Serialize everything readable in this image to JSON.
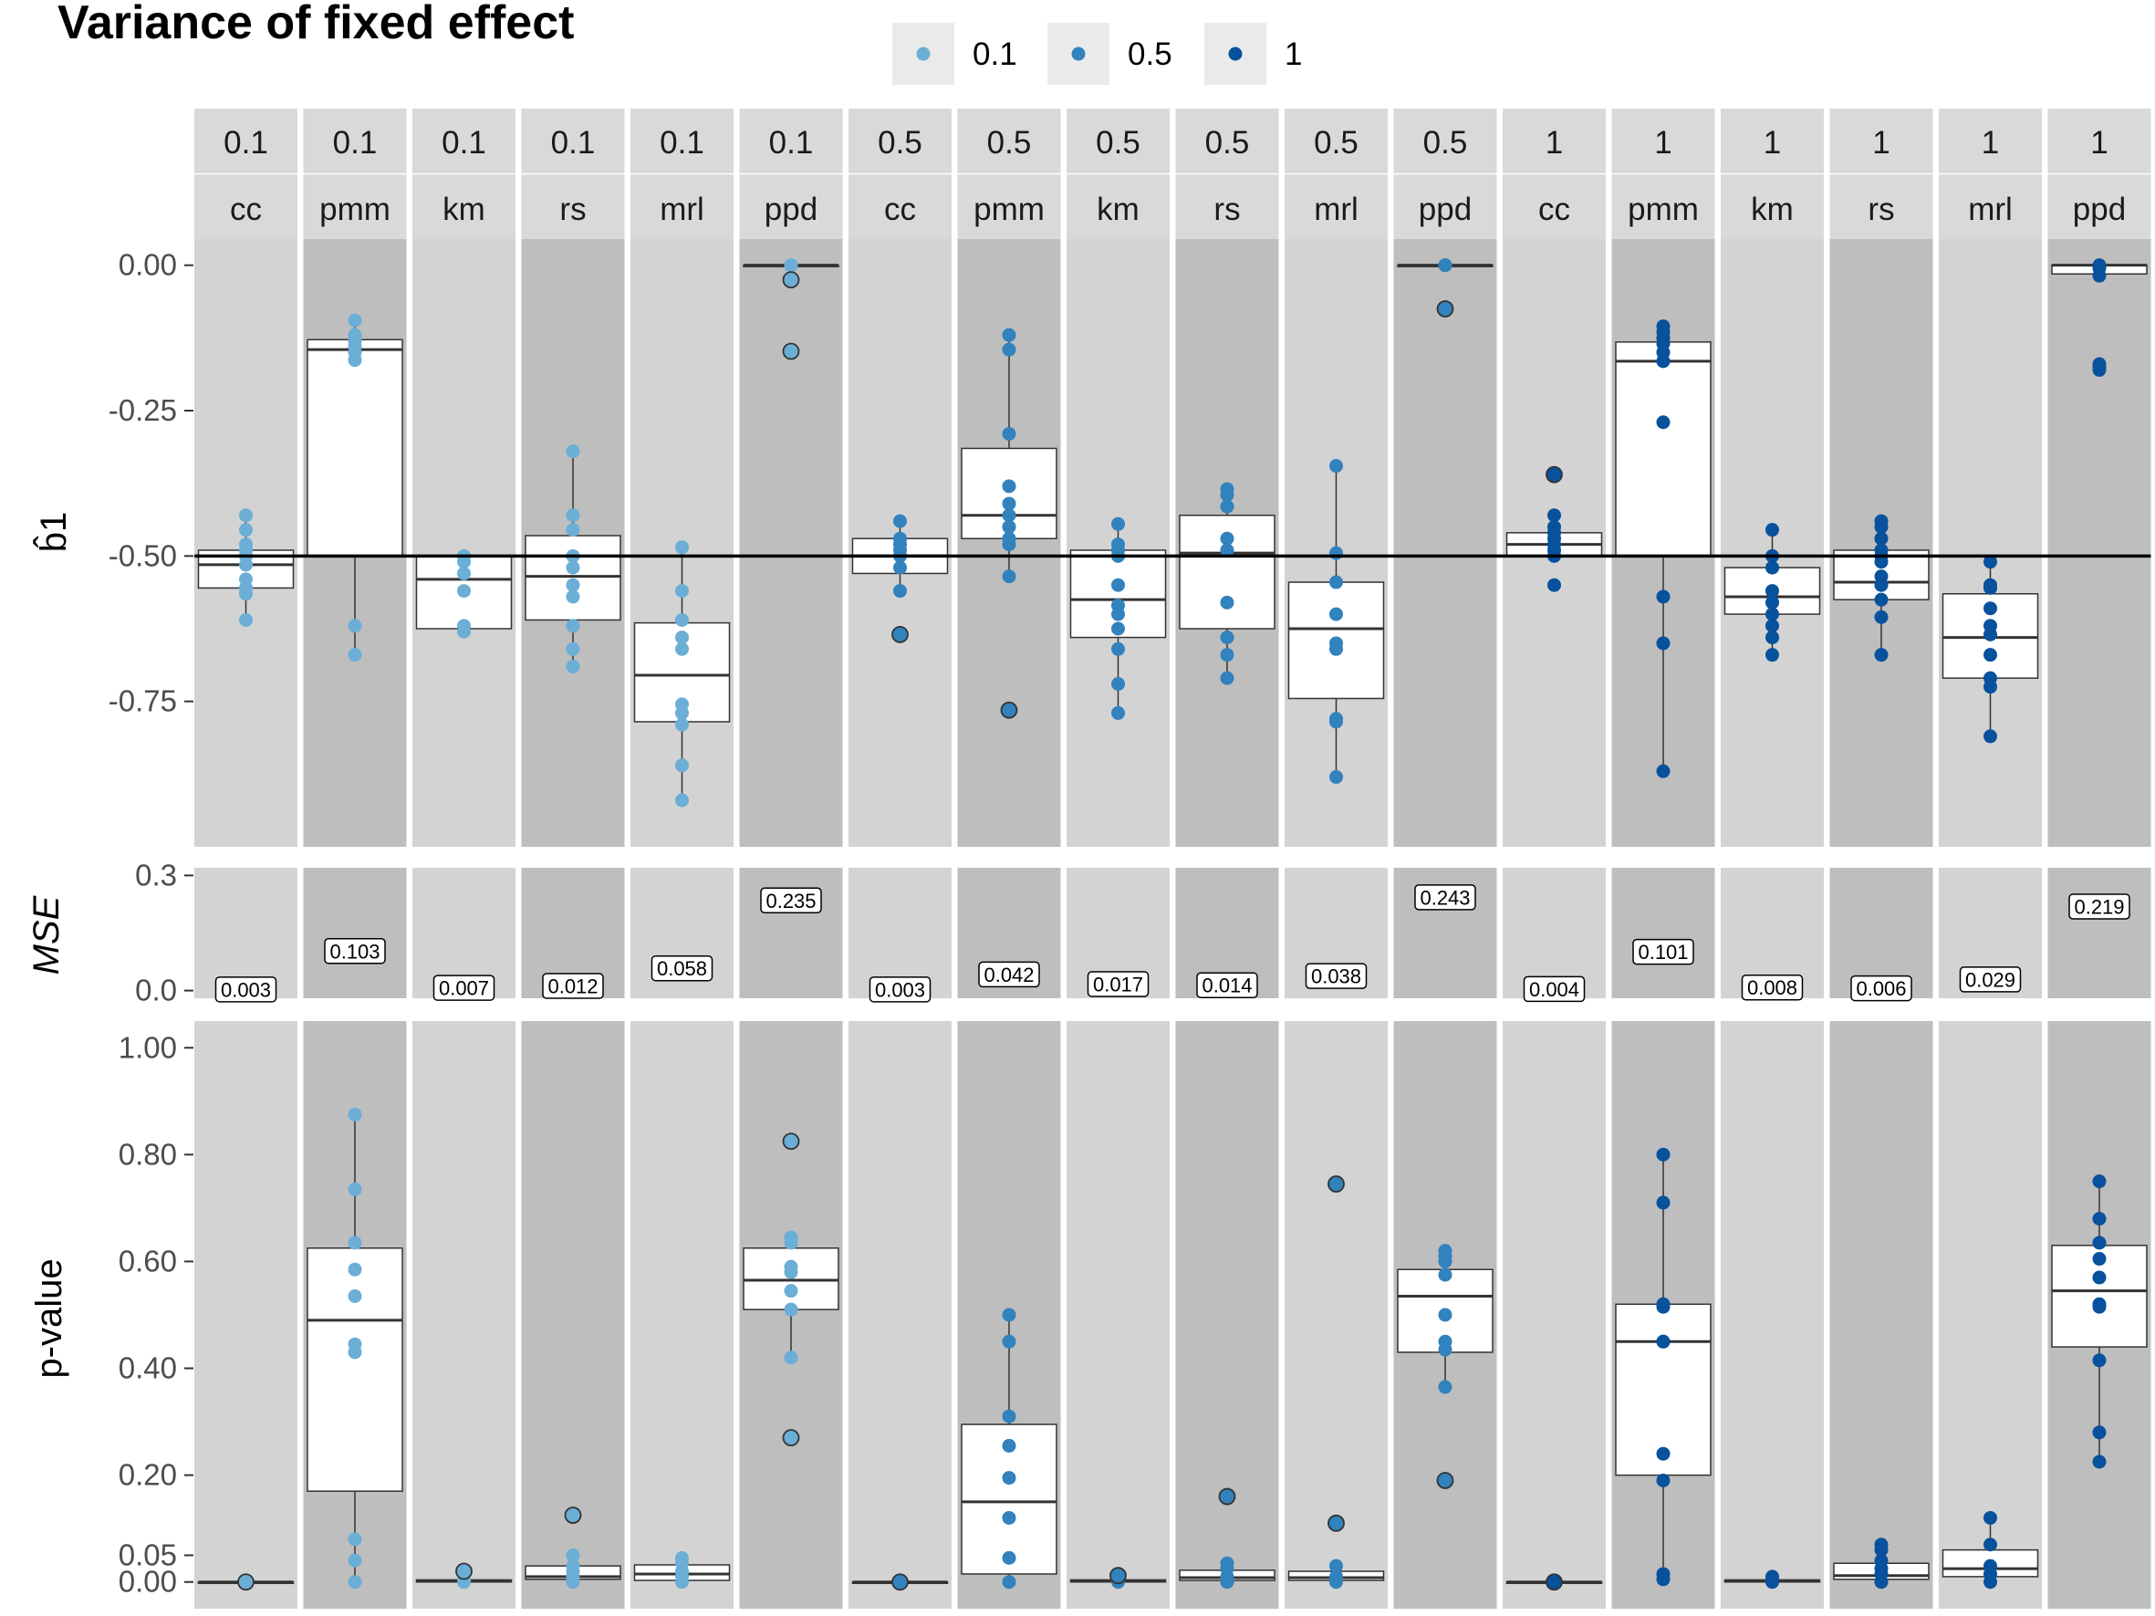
{
  "chart_data": {
    "type": "boxplot",
    "title": "Variance of fixed effect",
    "legend": {
      "placement": "top",
      "entries": [
        "0.1",
        "0.5",
        "1"
      ],
      "colors": [
        "#6baed6",
        "#3182bd",
        "#08519c"
      ]
    },
    "facet_rows": [
      "0.1",
      "0.1",
      "0.1",
      "0.1",
      "0.1",
      "0.1",
      "0.5",
      "0.5",
      "0.5",
      "0.5",
      "0.5",
      "0.5",
      "1",
      "1",
      "1",
      "1",
      "1",
      "1"
    ],
    "facet_methods": [
      "cc",
      "pmm",
      "km",
      "rs",
      "mrl",
      "ppd",
      "cc",
      "pmm",
      "km",
      "rs",
      "mrl",
      "ppd",
      "cc",
      "pmm",
      "km",
      "rs",
      "mrl",
      "ppd"
    ],
    "b1": {
      "ylabel": "b̂1",
      "ylim": [
        -1.0,
        0.045
      ],
      "ticks": [
        "0.00",
        "-0.25",
        "-0.50",
        "-0.75"
      ],
      "tick_values": [
        0.0,
        -0.25,
        -0.5,
        -0.75
      ],
      "reference_line": -0.5,
      "panels": [
        {
          "box": [
            -0.61,
            -0.555,
            -0.515,
            -0.49,
            -0.43
          ],
          "points": [
            -0.43,
            -0.455,
            -0.48,
            -0.49,
            -0.5,
            -0.515,
            -0.54,
            -0.555,
            -0.565,
            -0.61
          ],
          "outliers": []
        },
        {
          "box": [
            -0.67,
            -0.5,
            -0.145,
            -0.128,
            -0.095
          ],
          "points": [
            -0.095,
            -0.12,
            -0.13,
            -0.14,
            -0.15,
            -0.163,
            -0.62,
            -0.67
          ],
          "outliers": []
        },
        {
          "box": [
            -0.63,
            -0.625,
            -0.54,
            -0.5,
            -0.5
          ],
          "points": [
            -0.5,
            -0.51,
            -0.53,
            -0.56,
            -0.62,
            -0.63
          ],
          "outliers": []
        },
        {
          "box": [
            -0.69,
            -0.61,
            -0.535,
            -0.465,
            -0.32
          ],
          "points": [
            -0.32,
            -0.43,
            -0.455,
            -0.5,
            -0.52,
            -0.55,
            -0.57,
            -0.62,
            -0.66,
            -0.69
          ],
          "outliers": []
        },
        {
          "box": [
            -0.92,
            -0.785,
            -0.705,
            -0.615,
            -0.485
          ],
          "points": [
            -0.485,
            -0.56,
            -0.61,
            -0.64,
            -0.66,
            -0.755,
            -0.77,
            -0.79,
            -0.86,
            -0.92
          ],
          "outliers": []
        },
        {
          "box": [
            0.0,
            0.0,
            0.0,
            0.0,
            0.0
          ],
          "points": [
            0.0,
            0.0,
            0.0
          ],
          "outliers": [
            -0.025,
            -0.148
          ]
        },
        {
          "box": [
            -0.56,
            -0.53,
            -0.5,
            -0.47,
            -0.44
          ],
          "points": [
            -0.44,
            -0.47,
            -0.48,
            -0.49,
            -0.5,
            -0.52,
            -0.56
          ],
          "outliers": [
            -0.635
          ]
        },
        {
          "box": [
            -0.535,
            -0.47,
            -0.43,
            -0.315,
            -0.12
          ],
          "points": [
            -0.12,
            -0.145,
            -0.29,
            -0.38,
            -0.41,
            -0.43,
            -0.45,
            -0.47,
            -0.48,
            -0.535
          ],
          "outliers": [
            -0.765
          ]
        },
        {
          "box": [
            -0.77,
            -0.64,
            -0.575,
            -0.49,
            -0.445
          ],
          "points": [
            -0.445,
            -0.48,
            -0.49,
            -0.5,
            -0.55,
            -0.585,
            -0.6,
            -0.625,
            -0.66,
            -0.72,
            -0.77
          ],
          "outliers": []
        },
        {
          "box": [
            -0.71,
            -0.625,
            -0.495,
            -0.43,
            -0.385
          ],
          "points": [
            -0.385,
            -0.395,
            -0.415,
            -0.47,
            -0.49,
            -0.58,
            -0.64,
            -0.67,
            -0.71
          ],
          "outliers": []
        },
        {
          "box": [
            -0.88,
            -0.745,
            -0.625,
            -0.545,
            -0.345
          ],
          "points": [
            -0.345,
            -0.495,
            -0.545,
            -0.6,
            -0.65,
            -0.66,
            -0.78,
            -0.785,
            -0.88
          ],
          "outliers": []
        },
        {
          "box": [
            0.0,
            0.0,
            0.0,
            0.0,
            0.0
          ],
          "points": [
            0.0,
            0.0
          ],
          "outliers": [
            -0.075
          ]
        },
        {
          "box": [
            -0.5,
            -0.5,
            -0.48,
            -0.46,
            -0.43
          ],
          "points": [
            -0.43,
            -0.45,
            -0.46,
            -0.47,
            -0.48,
            -0.49,
            -0.5,
            -0.55
          ],
          "outliers": [
            -0.36
          ]
        },
        {
          "box": [
            -0.88,
            -0.5,
            -0.165,
            -0.132,
            -0.105
          ],
          "points": [
            -0.105,
            -0.115,
            -0.125,
            -0.135,
            -0.15,
            -0.165,
            -0.27,
            -0.57,
            -0.65,
            -0.87
          ],
          "outliers": []
        },
        {
          "box": [
            -0.67,
            -0.6,
            -0.57,
            -0.52,
            -0.455
          ],
          "points": [
            -0.455,
            -0.5,
            -0.52,
            -0.56,
            -0.58,
            -0.6,
            -0.62,
            -0.64,
            -0.67
          ],
          "outliers": []
        },
        {
          "box": [
            -0.67,
            -0.575,
            -0.545,
            -0.49,
            -0.44
          ],
          "points": [
            -0.44,
            -0.45,
            -0.47,
            -0.49,
            -0.5,
            -0.51,
            -0.535,
            -0.55,
            -0.575,
            -0.605,
            -0.67
          ],
          "outliers": []
        },
        {
          "box": [
            -0.81,
            -0.71,
            -0.64,
            -0.565,
            -0.51
          ],
          "points": [
            -0.51,
            -0.55,
            -0.555,
            -0.59,
            -0.62,
            -0.635,
            -0.67,
            -0.71,
            -0.725,
            -0.81
          ],
          "outliers": []
        },
        {
          "box": [
            -0.018,
            -0.015,
            0.0,
            0.0,
            0.0
          ],
          "points": [
            0.0,
            -0.005,
            -0.018,
            -0.17,
            -0.175,
            -0.18
          ],
          "outliers": []
        }
      ]
    },
    "mse": {
      "ylabel": "MSE",
      "ylim": [
        -0.02,
        0.32
      ],
      "ticks": [
        "0.3",
        "0.0"
      ],
      "tick_values": [
        0.3,
        0.0
      ],
      "values": [
        0.003,
        0.103,
        0.007,
        0.012,
        0.058,
        0.235,
        0.003,
        0.042,
        0.017,
        0.014,
        0.038,
        0.243,
        0.004,
        0.101,
        0.008,
        0.006,
        0.029,
        0.219
      ],
      "labels": [
        "0.003",
        "0.103",
        "0.007",
        "0.012",
        "0.058",
        "0.235",
        "0.003",
        "0.042",
        "0.017",
        "0.014",
        "0.038",
        "0.243",
        "0.004",
        "0.101",
        "0.008",
        "0.006",
        "0.029",
        "0.219"
      ]
    },
    "pvalue": {
      "ylabel": "p-value",
      "ylim": [
        -0.05,
        1.05
      ],
      "ticks": [
        "1.00",
        "0.80",
        "0.60",
        "0.40",
        "0.20",
        "0.05",
        "0.00"
      ],
      "tick_values": [
        1.0,
        0.8,
        0.6,
        0.4,
        0.2,
        0.05,
        0.0
      ],
      "panels": [
        {
          "box": [
            0.0,
            0.0,
            0.0,
            0.0,
            0.0
          ],
          "points": [
            0.0
          ],
          "outliers": [
            0.0
          ]
        },
        {
          "box": [
            0.0,
            0.17,
            0.49,
            0.625,
            0.875
          ],
          "points": [
            0.875,
            0.735,
            0.635,
            0.585,
            0.535,
            0.445,
            0.43,
            0.08,
            0.04,
            0.0
          ],
          "outliers": []
        },
        {
          "box": [
            0.0,
            0.0,
            0.002,
            0.004,
            0.006
          ],
          "points": [
            0.0,
            0.002,
            0.004
          ],
          "outliers": [
            0.02
          ]
        },
        {
          "box": [
            0.0,
            0.005,
            0.01,
            0.03,
            0.05
          ],
          "points": [
            0.0,
            0.01,
            0.02,
            0.03,
            0.05
          ],
          "outliers": [
            0.125
          ]
        },
        {
          "box": [
            0.0,
            0.003,
            0.015,
            0.032,
            0.045
          ],
          "points": [
            0.0,
            0.01,
            0.02,
            0.035,
            0.045
          ],
          "outliers": []
        },
        {
          "box": [
            0.42,
            0.51,
            0.565,
            0.625,
            0.645
          ],
          "points": [
            0.645,
            0.635,
            0.59,
            0.58,
            0.545,
            0.51,
            0.42
          ],
          "outliers": [
            0.825,
            0.27
          ]
        },
        {
          "box": [
            0.0,
            0.0,
            0.0,
            0.0,
            0.0
          ],
          "points": [
            0.0
          ],
          "outliers": [
            0.0
          ]
        },
        {
          "box": [
            0.0,
            0.015,
            0.15,
            0.295,
            0.5
          ],
          "points": [
            0.5,
            0.45,
            0.31,
            0.255,
            0.195,
            0.12,
            0.045,
            0.0
          ],
          "outliers": []
        },
        {
          "box": [
            0.0,
            0.0,
            0.002,
            0.004,
            0.006
          ],
          "points": [
            0.0,
            0.004
          ],
          "outliers": [
            0.012
          ]
        },
        {
          "box": [
            0.0,
            0.003,
            0.008,
            0.022,
            0.035
          ],
          "points": [
            0.0,
            0.01,
            0.025,
            0.035
          ],
          "outliers": [
            0.16
          ]
        },
        {
          "box": [
            0.0,
            0.003,
            0.008,
            0.02,
            0.03
          ],
          "points": [
            0.0,
            0.01,
            0.03
          ],
          "outliers": [
            0.745,
            0.11
          ]
        },
        {
          "box": [
            0.365,
            0.43,
            0.535,
            0.585,
            0.62
          ],
          "points": [
            0.62,
            0.61,
            0.6,
            0.575,
            0.5,
            0.45,
            0.435,
            0.365
          ],
          "outliers": [
            0.19
          ]
        },
        {
          "box": [
            0.0,
            0.0,
            0.0,
            0.0,
            0.0
          ],
          "points": [
            0.0
          ],
          "outliers": [
            0.0
          ]
        },
        {
          "box": [
            0.0,
            0.2,
            0.45,
            0.52,
            0.8
          ],
          "points": [
            0.8,
            0.71,
            0.52,
            0.515,
            0.45,
            0.45,
            0.24,
            0.19,
            0.015,
            0.005
          ],
          "outliers": []
        },
        {
          "box": [
            0.0,
            0.0,
            0.002,
            0.004,
            0.01
          ],
          "points": [
            0.0,
            0.005,
            0.01
          ],
          "outliers": []
        },
        {
          "box": [
            0.0,
            0.005,
            0.012,
            0.035,
            0.07
          ],
          "points": [
            0.0,
            0.015,
            0.025,
            0.04,
            0.06,
            0.07
          ],
          "outliers": []
        },
        {
          "box": [
            0.0,
            0.01,
            0.025,
            0.06,
            0.12
          ],
          "points": [
            0.0,
            0.015,
            0.03,
            0.07,
            0.12
          ],
          "outliers": []
        },
        {
          "box": [
            0.225,
            0.44,
            0.545,
            0.63,
            0.75
          ],
          "points": [
            0.75,
            0.68,
            0.635,
            0.605,
            0.57,
            0.52,
            0.515,
            0.415,
            0.28,
            0.225
          ],
          "outliers": []
        }
      ]
    }
  }
}
